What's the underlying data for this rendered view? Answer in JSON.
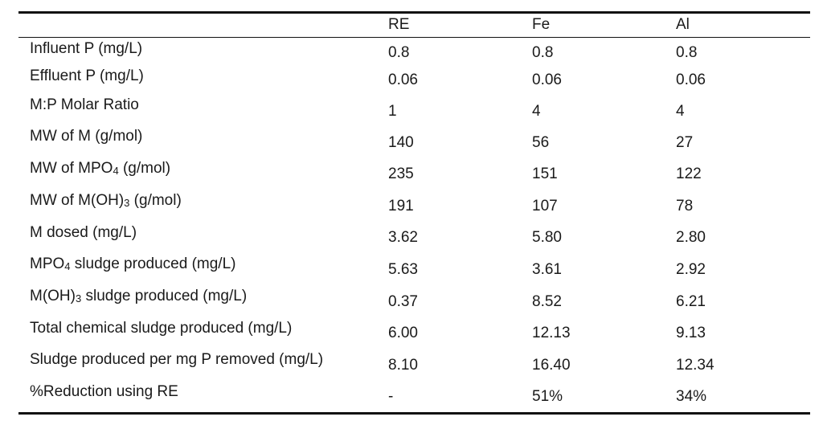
{
  "header": {
    "col1": "RE",
    "col2": "Fe",
    "col3": "Al"
  },
  "rows": [
    {
      "label_pre": "Influent P (mg/L)",
      "label_sub": "",
      "label_post": "",
      "re": "0.8",
      "fe": "0.8",
      "al": "0.8"
    },
    {
      "label_pre": "Effluent P (mg/L)",
      "label_sub": "",
      "label_post": "",
      "re": "0.06",
      "fe": "0.06",
      "al": "0.06"
    },
    {
      "label_pre": "M:P Molar Ratio",
      "label_sub": "",
      "label_post": "",
      "re": "1",
      "fe": "4",
      "al": "4"
    },
    {
      "label_pre": "MW of M (g/mol)",
      "label_sub": "",
      "label_post": "",
      "re": "140",
      "fe": "56",
      "al": "27"
    },
    {
      "label_pre": "MW of MPO",
      "label_sub": "4",
      "label_post": " (g/mol)",
      "re": "235",
      "fe": "151",
      "al": "122"
    },
    {
      "label_pre": "MW of M(OH)",
      "label_sub": "3",
      "label_post": " (g/mol)",
      "re": "191",
      "fe": "107",
      "al": "78"
    },
    {
      "label_pre": "M dosed (mg/L)",
      "label_sub": "",
      "label_post": "",
      "re": "3.62",
      "fe": "5.80",
      "al": "2.80"
    },
    {
      "label_pre": "MPO",
      "label_sub": "4",
      "label_post": " sludge produced (mg/L)",
      "re": "5.63",
      "fe": "3.61",
      "al": "2.92"
    },
    {
      "label_pre": "M(OH)",
      "label_sub": "3",
      "label_post": " sludge produced (mg/L)",
      "re": "0.37",
      "fe": "8.52",
      "al": "6.21"
    },
    {
      "label_pre": "Total chemical sludge produced (mg/L)",
      "label_sub": "",
      "label_post": "",
      "re": "6.00",
      "fe": "12.13",
      "al": "9.13"
    },
    {
      "label_pre": "Sludge produced per mg P removed (mg/L)",
      "label_sub": "",
      "label_post": "",
      "re": "8.10",
      "fe": "16.40",
      "al": "12.34"
    },
    {
      "label_pre": "%Reduction using RE",
      "label_sub": "",
      "label_post": "",
      "re": "-",
      "fe": "51%",
      "al": "34%"
    }
  ]
}
